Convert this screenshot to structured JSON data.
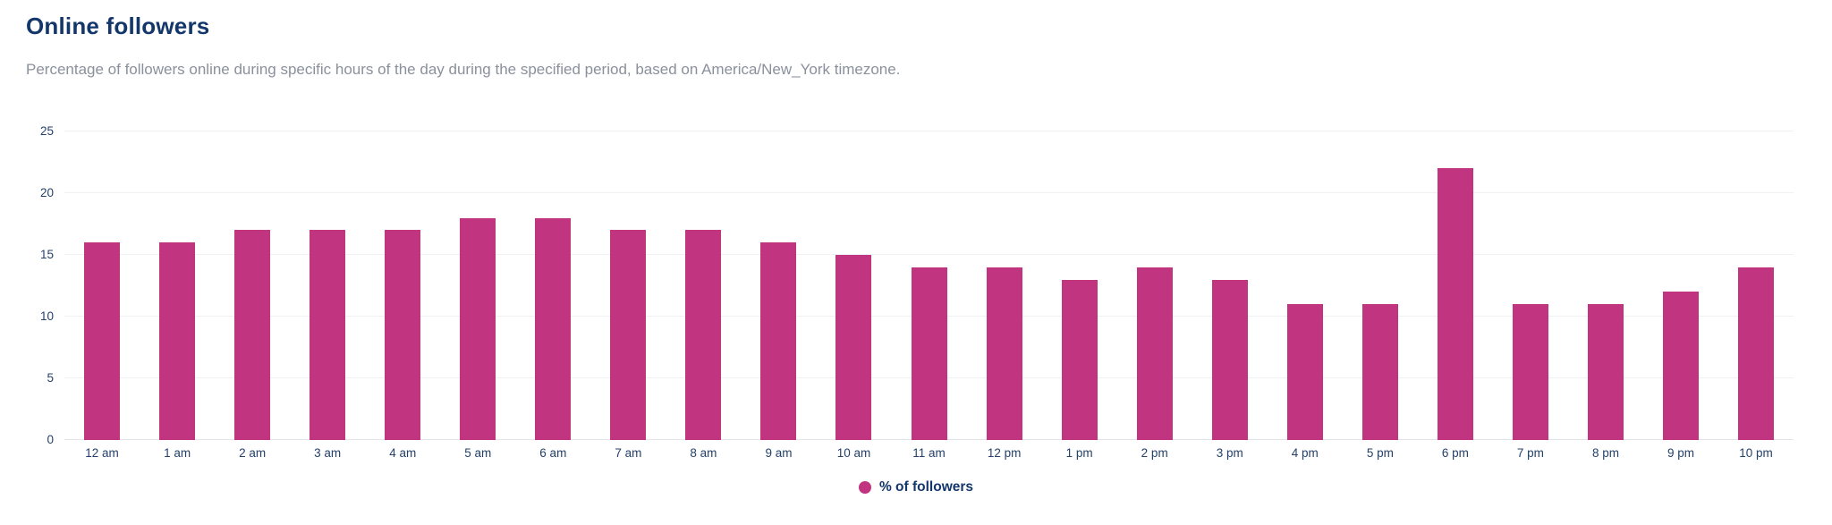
{
  "header": {
    "title": "Online followers",
    "subtitle": "Percentage of followers online during specific hours of the day during the specified period, based on America/New_York timezone."
  },
  "legend": {
    "label": "% of followers"
  },
  "colors": {
    "bar": "#c13480",
    "title_text": "#14376b",
    "subtitle_text": "#8a909c",
    "axis_text": "#24416b",
    "gridline": "#f0f1f4",
    "baseline": "#e2e4e9",
    "background": "#ffffff"
  },
  "chart_data": {
    "type": "bar",
    "title": "Online followers",
    "subtitle": "Percentage of followers online during specific hours of the day during the specified period, based on America/New_York timezone.",
    "series_name": "% of followers",
    "categories": [
      "12 am",
      "1 am",
      "2 am",
      "3 am",
      "4 am",
      "5 am",
      "6 am",
      "7 am",
      "8 am",
      "9 am",
      "10 am",
      "11 am",
      "12 pm",
      "1 pm",
      "2 pm",
      "3 pm",
      "4 pm",
      "5 pm",
      "6 pm",
      "7 pm",
      "8 pm",
      "9 pm",
      "10 pm"
    ],
    "values": [
      16,
      16,
      17,
      17,
      17,
      18,
      18,
      17,
      17,
      16,
      15,
      14,
      14,
      13,
      14,
      13,
      11,
      11,
      22,
      11,
      11,
      12,
      14
    ],
    "xlabel": "",
    "ylabel": "",
    "ylim": [
      0,
      25
    ],
    "yticks": [
      0,
      5,
      10,
      15,
      20,
      25
    ],
    "grid": true,
    "bar_color": "#c13480",
    "legend_position": "bottom"
  }
}
